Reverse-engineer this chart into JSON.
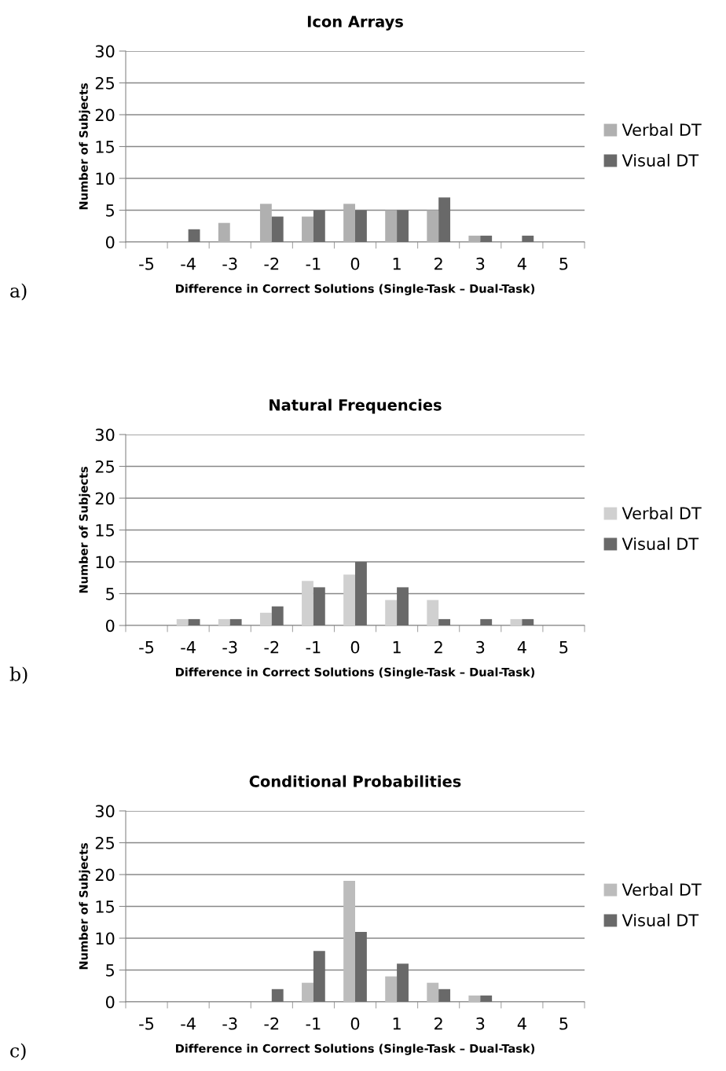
{
  "chart_data": [
    {
      "type": "bar",
      "title": "Icon Arrays",
      "xlabel": "Difference in Correct Solutions (Single-Task – Dual-Task)",
      "ylabel": "Number of Subjects",
      "categories": [
        "-5",
        "-4",
        "-3",
        "-2",
        "-1",
        "0",
        "1",
        "2",
        "3",
        "4",
        "5"
      ],
      "series": [
        {
          "name": "Verbal DT",
          "color": "#b0b0b0",
          "values": [
            0,
            0,
            3,
            6,
            4,
            6,
            5,
            5,
            1,
            0,
            0
          ]
        },
        {
          "name": "Visual DT",
          "color": "#696969",
          "values": [
            0,
            2,
            0,
            4,
            5,
            5,
            5,
            7,
            1,
            1,
            0
          ]
        }
      ],
      "ylim": [
        0,
        30
      ],
      "yticks": [
        0,
        5,
        10,
        15,
        20,
        25,
        30
      ],
      "grid": "y",
      "legend": "right",
      "annotations": [
        "a)"
      ]
    },
    {
      "type": "bar",
      "title": "Natural Frequencies",
      "xlabel": "Difference in Correct Solutions (Single-Task – Dual-Task)",
      "ylabel": "Number of Subjects",
      "categories": [
        "-5",
        "-4",
        "-3",
        "-2",
        "-1",
        "0",
        "1",
        "2",
        "3",
        "4",
        "5"
      ],
      "series": [
        {
          "name": "Verbal DT",
          "color": "#d0d0d0",
          "values": [
            0,
            1,
            1,
            2,
            7,
            8,
            4,
            4,
            0,
            1,
            0
          ]
        },
        {
          "name": "Visual DT",
          "color": "#696969",
          "values": [
            0,
            1,
            1,
            3,
            6,
            10,
            6,
            1,
            1,
            1,
            0
          ]
        }
      ],
      "ylim": [
        0,
        30
      ],
      "yticks": [
        0,
        5,
        10,
        15,
        20,
        25,
        30
      ],
      "grid": "y",
      "legend": "right",
      "annotations": [
        "b)"
      ]
    },
    {
      "type": "bar",
      "title": "Conditional Probabilities",
      "xlabel": "Difference in Correct Solutions (Single-Task – Dual-Task)",
      "ylabel": "Number of Subjects",
      "categories": [
        "-5",
        "-4",
        "-3",
        "-2",
        "-1",
        "0",
        "1",
        "2",
        "3",
        "4",
        "5"
      ],
      "series": [
        {
          "name": "Verbal DT",
          "color": "#bcbcbc",
          "values": [
            0,
            0,
            0,
            0,
            3,
            19,
            4,
            3,
            1,
            0,
            0
          ]
        },
        {
          "name": "Visual DT",
          "color": "#696969",
          "values": [
            0,
            0,
            0,
            2,
            8,
            11,
            6,
            2,
            1,
            0,
            0
          ]
        }
      ],
      "ylim": [
        0,
        30
      ],
      "yticks": [
        0,
        5,
        10,
        15,
        20,
        25,
        30
      ],
      "grid": "y",
      "legend": "right",
      "annotations": [
        "c)"
      ]
    }
  ]
}
